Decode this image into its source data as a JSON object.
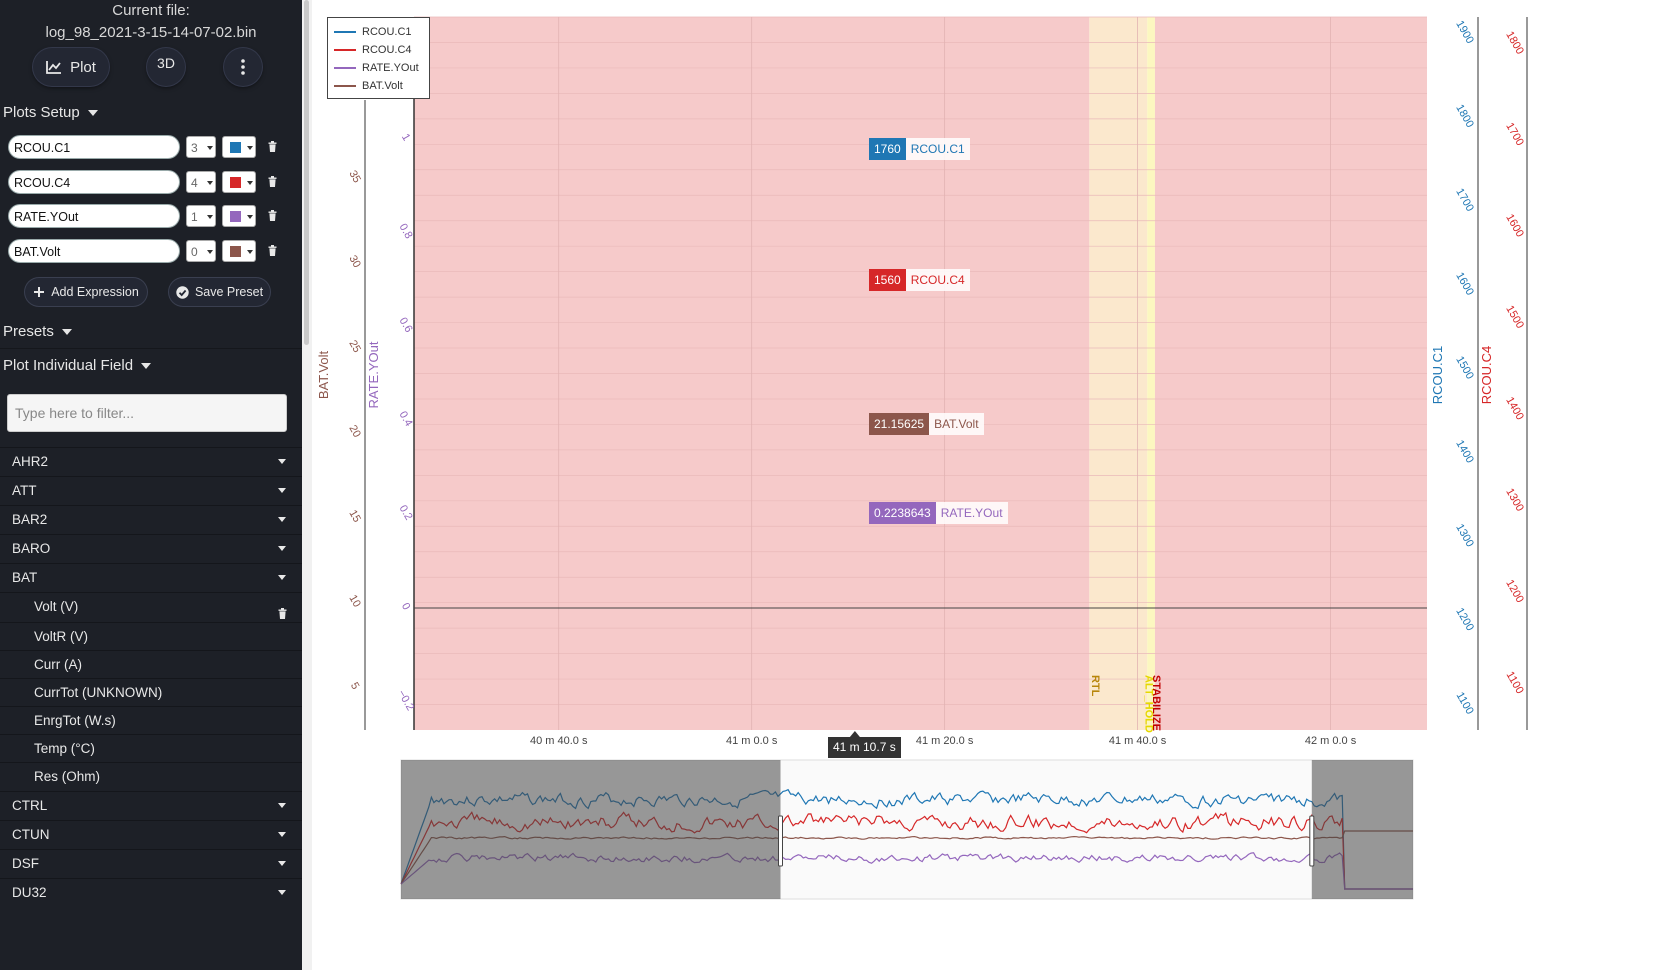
{
  "file": {
    "label": "Current file:",
    "name": "log_98_2021-3-15-14-07-02.bin"
  },
  "top_buttons": {
    "plot": "Plot",
    "three_d": "3D"
  },
  "plots_setup": {
    "title": "Plots Setup",
    "expressions": [
      {
        "name": "RCOU.C1",
        "axis": "3",
        "color": "#1f77b4"
      },
      {
        "name": "RCOU.C4",
        "axis": "4",
        "color": "#d62728"
      },
      {
        "name": "RATE.YOut",
        "axis": "1",
        "color": "#9467bd"
      },
      {
        "name": "BAT.Volt",
        "axis": "0",
        "color": "#8c564b"
      }
    ],
    "add_expression": "Add Expression",
    "save_preset": "Save Preset"
  },
  "presets": "Presets",
  "plot_individual": "Plot Individual Field",
  "filter_placeholder": "Type here to filter...",
  "tree": {
    "groups_top": [
      "AHR2",
      "ATT",
      "BAR2",
      "BARO",
      "BAT"
    ],
    "bat_fields": [
      "Volt (V)",
      "VoltR (V)",
      "Curr (A)",
      "CurrTot (UNKNOWN)",
      "EnrgTot (W.s)",
      "Temp (°C)",
      "Res (Ohm)"
    ],
    "groups_bottom": [
      "CTRL",
      "CTUN",
      "DSF",
      "DU32"
    ]
  },
  "chart_data": {
    "type": "line",
    "legend": [
      "RCOU.C1",
      "RCOU.C4",
      "RATE.YOut",
      "BAT.Volt"
    ],
    "legend_position": "top-left",
    "x_ticks": [
      "40 m 40.0 s",
      "41 m 0.0 s",
      "41 m 20.0 s",
      "41 m 40.0 s",
      "42 m 0.0 s"
    ],
    "x_range_seconds": [
      2425,
      2530
    ],
    "axes": {
      "bat_volt": {
        "label": "BAT.Volt",
        "ticks": [
          5,
          10,
          15,
          20,
          25,
          30,
          35,
          40
        ],
        "range": [
          2.5,
          44.5
        ],
        "color": "#8c564b"
      },
      "rate_yout": {
        "label": "RATE.YOut",
        "ticks": [
          "−0.2",
          "0",
          "0.2",
          "0.4",
          "0.6",
          "0.8",
          "1"
        ],
        "range": [
          -0.26,
          1.26
        ],
        "color": "#9467bd"
      },
      "rcou_c1": {
        "label": "RCOU.C1",
        "ticks": [
          1100,
          1200,
          1300,
          1400,
          1500,
          1600,
          1700,
          1800,
          1900
        ],
        "range": [
          1070,
          1920
        ],
        "color": "#1f77b4"
      },
      "rcou_c4": {
        "label": "RCOU.C4",
        "ticks": [
          1100,
          1200,
          1300,
          1400,
          1500,
          1600,
          1700,
          1800
        ],
        "range": [
          1050,
          1830
        ],
        "color": "#d62728"
      }
    },
    "mode_regions": [
      {
        "from": 2425,
        "to": 2495,
        "color": "#f6caca"
      },
      {
        "from": 2495,
        "to": 2501,
        "color": "#fbe8cd"
      },
      {
        "from": 2501,
        "to": 2501.8,
        "color": "#fcf7c0"
      },
      {
        "from": 2501.8,
        "to": 2530,
        "color": "#f6caca"
      }
    ],
    "mode_labels": [
      {
        "t": 2495.3,
        "text": "RTL",
        "color": "#b8860b"
      },
      {
        "t": 2500.8,
        "text": "ALT_HOLD",
        "color": "#e6d800"
      },
      {
        "t": 2501.6,
        "text": "STABILIZE",
        "color": "#c00000"
      }
    ],
    "hover": {
      "time": "41 m 10.7 s",
      "rcou_c1": "1760",
      "rcou_c4": "1560",
      "bat_volt": "21.15625",
      "rate_yout": "0.2238643"
    },
    "series": [
      {
        "name": "RCOU.C1",
        "axis": "rcou_c1",
        "base": 1680,
        "amp": 60,
        "seed": 11
      },
      {
        "name": "RCOU.C4",
        "axis": "rcou_c4",
        "base": 1530,
        "amp": 70,
        "seed": 23
      },
      {
        "name": "BAT.Volt",
        "axis": "bat_volt",
        "base": 21.1,
        "amp": 0.25,
        "seed": 5
      },
      {
        "name": "RATE.YOut",
        "axis": "rate_yout",
        "base": 0.2,
        "amp": 0.06,
        "seed": 37
      }
    ],
    "overview_window": [
      0.375,
      0.9
    ]
  }
}
